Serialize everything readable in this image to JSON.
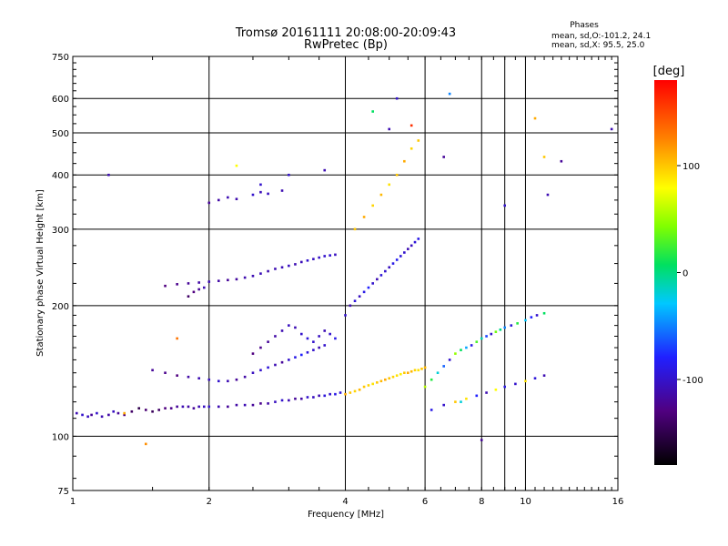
{
  "chart_data": {
    "type": "scatter",
    "title": "Tromsø 20161111 20:08:00-20:09:43",
    "subtitle": "RwPretec (Bp)",
    "xlabel": "Frequency [MHz]",
    "ylabel": "Stationary phase Virtual Height [km]",
    "x_scale": "log",
    "y_scale": "log",
    "xlim": [
      1,
      16
    ],
    "ylim": [
      75,
      750
    ],
    "x_ticks": [
      1,
      2,
      4,
      6,
      8,
      10,
      16
    ],
    "y_ticks": [
      75,
      100,
      200,
      300,
      400,
      500,
      600,
      750
    ],
    "x_gridlines": [
      2,
      4,
      6,
      8,
      9,
      10
    ],
    "y_gridlines": [
      100,
      200,
      300,
      400,
      500,
      600
    ],
    "grid": true,
    "legend_box": {
      "title": "Phases",
      "line1": "mean, sd,O:-101.2, 24.1",
      "line2": "mean, sd,X:  95.5, 25.0"
    },
    "colorbar": {
      "unit": "[deg]",
      "range": [
        -180,
        180
      ],
      "ticks": [
        100,
        0,
        -100
      ],
      "placement": "right"
    },
    "point_groups": [
      {
        "name": "",
        "x": [
          1.02,
          1.05,
          1.08,
          1.1,
          1.13,
          1.16,
          1.2,
          1.23,
          1.26,
          1.3,
          1.35,
          1.4,
          1.45,
          1.5,
          1.55,
          1.6,
          1.65,
          1.7,
          1.75,
          1.8,
          1.85,
          1.9,
          1.95,
          2.0,
          2.1,
          2.2,
          2.3,
          2.4,
          2.5,
          2.6,
          2.7,
          2.8,
          2.9,
          3.0,
          3.1,
          3.2,
          3.3,
          3.4,
          3.5,
          3.6,
          3.7,
          3.8,
          3.9
        ],
        "y": [
          113,
          112,
          111,
          112,
          113,
          111,
          112,
          114,
          113,
          112,
          114,
          116,
          115,
          114,
          115,
          116,
          116,
          117,
          117,
          117,
          116,
          117,
          117,
          117,
          117,
          117,
          118,
          118,
          118,
          119,
          119,
          120,
          121,
          121,
          122,
          122,
          123,
          123,
          124,
          124,
          125,
          125,
          126
        ],
        "phase": [
          -110,
          -100,
          -105,
          -120,
          -100,
          -110,
          -115,
          -105,
          -120,
          -130,
          -140,
          -150,
          -135,
          -145,
          -140,
          -130,
          -125,
          -120,
          -110,
          -115,
          -120,
          -110,
          -105,
          -100,
          -110,
          -120,
          -115,
          -110,
          -120,
          -125,
          -115,
          -105,
          -100,
          -110,
          -120,
          -115,
          -100,
          -105,
          -110,
          -95,
          -100,
          -90,
          -95
        ]
      },
      {
        "name": "",
        "x": [
          1.6,
          1.7,
          1.8,
          1.9,
          2.0,
          2.1,
          2.2,
          2.3,
          2.4,
          2.5,
          2.6,
          2.7,
          2.8,
          2.9,
          3.0,
          3.1,
          3.2,
          3.3,
          3.4,
          3.5,
          3.6,
          3.7,
          3.8
        ],
        "y": [
          222,
          224,
          225,
          226,
          227,
          228,
          229,
          230,
          232,
          234,
          237,
          240,
          243,
          245,
          247,
          249,
          252,
          254,
          256,
          258,
          260,
          261,
          262
        ],
        "phase": [
          -130,
          -125,
          -120,
          -115,
          -110,
          -115,
          -120,
          -118,
          -112,
          -110,
          -108,
          -112,
          -110,
          -108,
          -105,
          -110,
          -108,
          -100,
          -105,
          -102,
          -100,
          -98,
          -105
        ]
      },
      {
        "name": "",
        "x": [
          1.8,
          1.85,
          1.9,
          1.95,
          2.0,
          2.1,
          2.2,
          2.3,
          2.5,
          2.6,
          2.7,
          2.9
        ],
        "y": [
          210,
          215,
          218,
          220,
          345,
          350,
          355,
          352,
          360,
          365,
          362,
          368
        ],
        "phase": [
          -140,
          -130,
          -120,
          -110,
          -120,
          -115,
          -110,
          -112,
          -100,
          -108,
          -105,
          -110
        ]
      },
      {
        "name": "",
        "x": [
          1.5,
          1.6,
          1.7,
          1.8,
          1.9,
          2.0,
          2.1,
          2.2,
          2.3,
          2.4,
          2.5,
          2.6,
          2.7,
          2.8,
          2.9,
          3.0,
          3.1,
          3.2,
          3.3,
          3.4,
          3.5,
          3.6
        ],
        "y": [
          142,
          140,
          138,
          137,
          136,
          135,
          134,
          134,
          135,
          137,
          140,
          142,
          144,
          146,
          148,
          150,
          152,
          154,
          156,
          158,
          160,
          162
        ],
        "phase": [
          -120,
          -125,
          -130,
          -115,
          -110,
          -105,
          -100,
          -110,
          -120,
          -115,
          -105,
          -100,
          -95,
          -110,
          -120,
          -100,
          -90,
          -80,
          -95,
          -100,
          -110,
          -100
        ]
      },
      {
        "name": "",
        "x": [
          2.5,
          2.6,
          2.7,
          2.8,
          2.9,
          3.0,
          3.1,
          3.2,
          3.3,
          3.4,
          3.5,
          3.6,
          3.7,
          3.8
        ],
        "y": [
          155,
          160,
          165,
          170,
          175,
          180,
          178,
          172,
          168,
          165,
          170,
          175,
          172,
          168
        ],
        "phase": [
          -130,
          -125,
          -120,
          -115,
          -110,
          -105,
          -110,
          -100,
          -95,
          -100,
          -105,
          -110,
          -100,
          -90
        ]
      },
      {
        "name": "",
        "x": [
          4.0,
          4.1,
          4.2,
          4.3,
          4.4,
          4.5,
          4.6,
          4.7,
          4.8,
          4.9,
          5.0,
          5.1,
          5.2,
          5.3,
          5.4,
          5.5,
          5.6,
          5.7,
          5.8,
          5.9,
          6.0
        ],
        "y": [
          125,
          126,
          127,
          128,
          130,
          131,
          132,
          133,
          134,
          135,
          136,
          137,
          138,
          139,
          140,
          140,
          141,
          142,
          142,
          143,
          144
        ],
        "phase": [
          110,
          100,
          95,
          105,
          100,
          95,
          90,
          100,
          105,
          110,
          100,
          95,
          90,
          85,
          100,
          110,
          105,
          95,
          90,
          100,
          105
        ]
      },
      {
        "name": "",
        "x": [
          4.0,
          4.1,
          4.2,
          4.3,
          4.4,
          4.5,
          4.6,
          4.7,
          4.8,
          4.9,
          5.0,
          5.1,
          5.2,
          5.3,
          5.4,
          5.5,
          5.6,
          5.7,
          5.8
        ],
        "y": [
          190,
          200,
          205,
          210,
          215,
          220,
          225,
          230,
          235,
          240,
          245,
          250,
          255,
          260,
          265,
          270,
          275,
          280,
          285
        ],
        "phase": [
          -100,
          -110,
          -95,
          -105,
          -90,
          -80,
          -100,
          -110,
          -95,
          -100,
          -105,
          -90,
          -85,
          -95,
          -100,
          -110,
          -105,
          -95,
          -90
        ]
      },
      {
        "name": "",
        "x": [
          4.2,
          4.4,
          4.6,
          4.8,
          5.0,
          5.2,
          5.4,
          5.6,
          5.8
        ],
        "y": [
          300,
          320,
          340,
          360,
          380,
          400,
          430,
          460,
          480
        ],
        "phase": [
          100,
          110,
          95,
          105,
          90,
          100,
          110,
          95,
          100
        ]
      },
      {
        "name": "",
        "x": [
          6.0,
          6.2,
          6.4,
          6.6,
          6.8,
          7.0,
          7.2,
          7.4,
          7.6,
          7.8,
          8.0,
          8.2,
          8.4,
          8.6,
          8.8,
          9.0,
          9.3,
          9.6,
          10.0,
          10.3,
          10.6,
          11.0
        ],
        "y": [
          130,
          135,
          140,
          145,
          150,
          155,
          158,
          160,
          162,
          165,
          168,
          170,
          172,
          174,
          176,
          178,
          180,
          182,
          185,
          188,
          190,
          192
        ],
        "phase": [
          60,
          20,
          -20,
          -60,
          -100,
          50,
          10,
          -40,
          -90,
          30,
          -10,
          -70,
          -100,
          40,
          0,
          -50,
          -95,
          20,
          -30,
          -80,
          -100,
          10
        ]
      },
      {
        "name": "",
        "x": [
          6.2,
          6.6,
          7.0,
          7.4,
          7.8,
          8.2,
          8.6,
          9.0,
          9.5,
          10.0,
          10.5,
          11.0
        ],
        "y": [
          115,
          118,
          120,
          122,
          124,
          126,
          128,
          130,
          132,
          134,
          136,
          138
        ],
        "phase": [
          -90,
          -100,
          100,
          90,
          -80,
          -110,
          80,
          -90,
          -100,
          90,
          -95,
          -110
        ]
      },
      {
        "name": "",
        "x": [
          1.45,
          1.3,
          2.3,
          2.6,
          3.6,
          5.0,
          5.2,
          6.8,
          6.6,
          9.0,
          11.0,
          12.0,
          15.5,
          1.2,
          1.7,
          3.0,
          4.6,
          5.6,
          7.2,
          8.0,
          10.5,
          11.2
        ],
        "y": [
          96,
          113,
          420,
          380,
          410,
          510,
          600,
          615,
          440,
          340,
          440,
          430,
          510,
          400,
          168,
          400,
          560,
          520,
          120,
          98,
          540,
          360
        ],
        "phase": [
          120,
          110,
          80,
          -100,
          -110,
          -110,
          -100,
          -50,
          -120,
          -100,
          100,
          -120,
          -110,
          -110,
          130,
          -100,
          10,
          160,
          -20,
          -120,
          110,
          -110
        ]
      }
    ]
  }
}
